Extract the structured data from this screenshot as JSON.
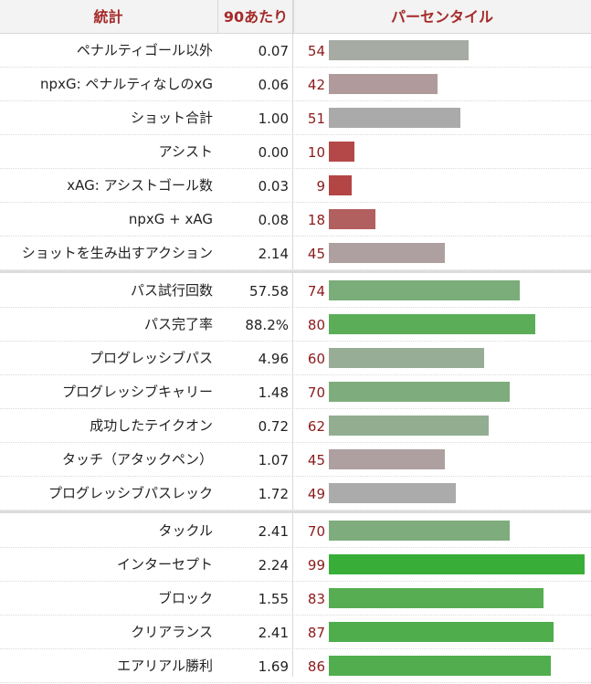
{
  "header": {
    "stat": "統計",
    "per90": "90あたり",
    "percentile": "パーセンタイル"
  },
  "groups": [
    [
      {
        "stat": "ペナルティゴール以外",
        "per90": "0.07",
        "pct": "54",
        "color": "#a6aba3"
      },
      {
        "stat": "npxG: ペナルティなしのxG",
        "per90": "0.06",
        "pct": "42",
        "color": "#b09a9b"
      },
      {
        "stat": "ショット合計",
        "per90": "1.00",
        "pct": "51",
        "color": "#aaaaaa"
      },
      {
        "stat": "アシスト",
        "per90": "0.00",
        "pct": "10",
        "color": "#b44848"
      },
      {
        "stat": "xAG: アシストゴール数",
        "per90": "0.03",
        "pct": "9",
        "color": "#b44545"
      },
      {
        "stat": "npxG + xAG",
        "per90": "0.08",
        "pct": "18",
        "color": "#b25f60"
      },
      {
        "stat": "ショットを生み出すアクション",
        "per90": "2.14",
        "pct": "45",
        "color": "#ae9fa0"
      }
    ],
    [
      {
        "stat": "パス試行回数",
        "per90": "57.58",
        "pct": "74",
        "color": "#7aad79"
      },
      {
        "stat": "パス完了率",
        "per90": "88.2%",
        "pct": "80",
        "color": "#5cad58"
      },
      {
        "stat": "プログレッシブパス",
        "per90": "4.96",
        "pct": "60",
        "color": "#98ad95"
      },
      {
        "stat": "プログレッシブキャリー",
        "per90": "1.48",
        "pct": "70",
        "color": "#7eac7c"
      },
      {
        "stat": "成功したテイクオン",
        "per90": "0.72",
        "pct": "62",
        "color": "#93ad90"
      },
      {
        "stat": "タッチ（アタックペン）",
        "per90": "1.07",
        "pct": "45",
        "color": "#ae9fa0"
      },
      {
        "stat": "プログレッシブパスレック",
        "per90": "1.72",
        "pct": "49",
        "color": "#ababab"
      }
    ],
    [
      {
        "stat": "タックル",
        "per90": "2.41",
        "pct": "70",
        "color": "#7eac7c"
      },
      {
        "stat": "インターセプト",
        "per90": "2.24",
        "pct": "99",
        "color": "#38ae38"
      },
      {
        "stat": "ブロック",
        "per90": "1.55",
        "pct": "83",
        "color": "#56ad52"
      },
      {
        "stat": "クリアランス",
        "per90": "2.41",
        "pct": "87",
        "color": "#4fad4b"
      },
      {
        "stat": "エアリアル勝利",
        "per90": "1.69",
        "pct": "86",
        "color": "#51ad4d"
      }
    ]
  ]
}
